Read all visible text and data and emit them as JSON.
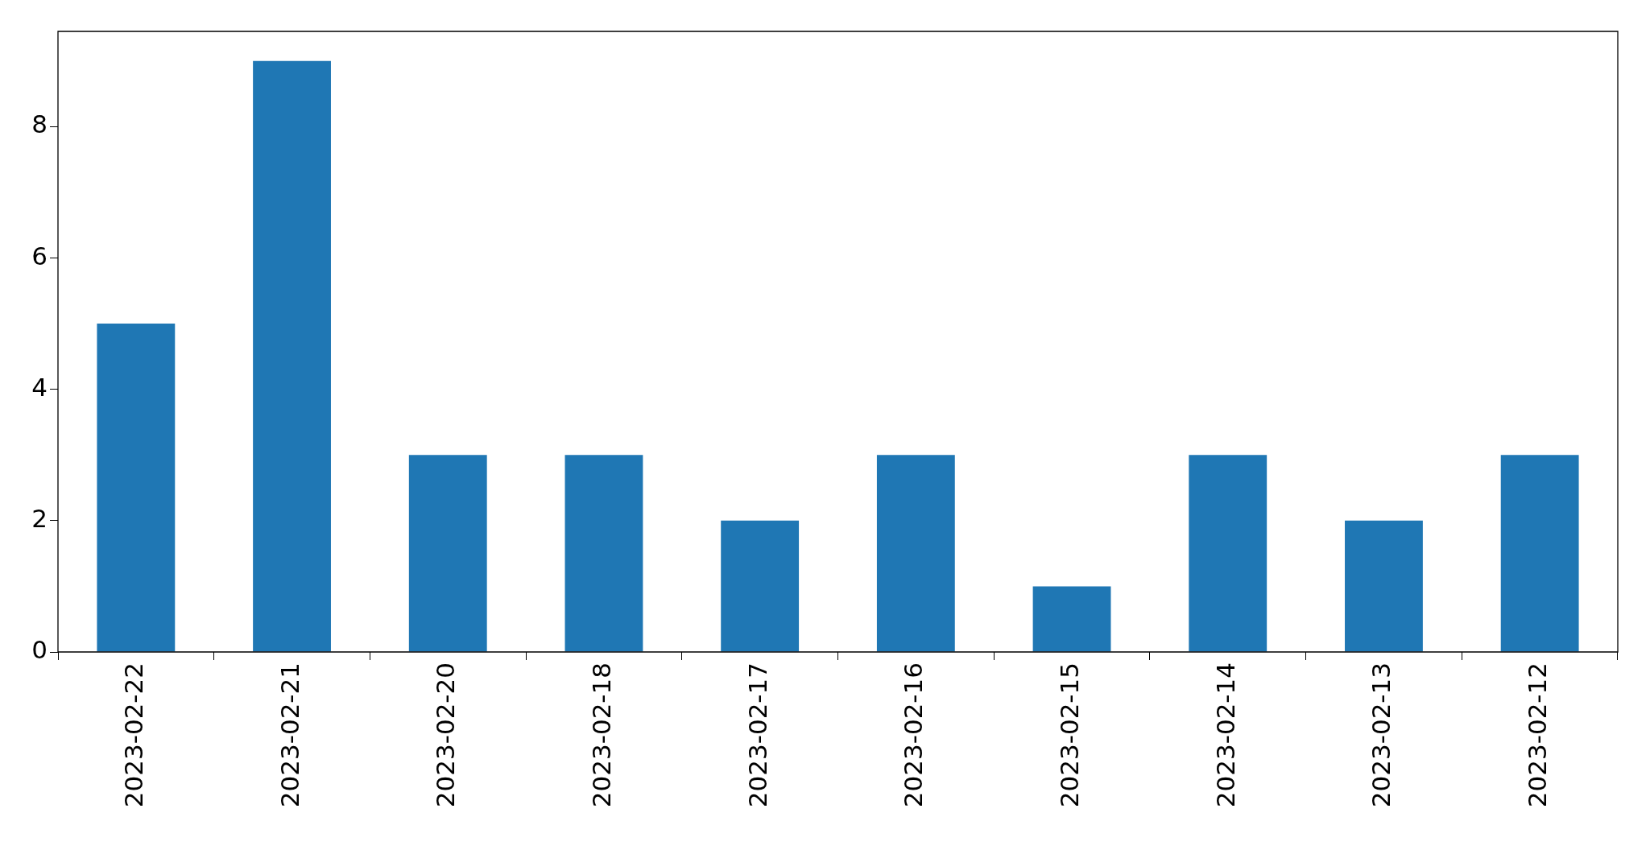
{
  "chart_data": {
    "type": "bar",
    "categories": [
      "2023-02-22",
      "2023-02-21",
      "2023-02-20",
      "2023-02-18",
      "2023-02-17",
      "2023-02-16",
      "2023-02-15",
      "2023-02-14",
      "2023-02-13",
      "2023-02-12"
    ],
    "values": [
      5,
      9,
      3,
      3,
      2,
      3,
      1,
      3,
      2,
      3
    ],
    "color": "#1f77b4",
    "ylim": [
      0,
      9.45
    ],
    "yticks": [
      0,
      2,
      4,
      6,
      8
    ],
    "grid": false,
    "legend": false
  }
}
